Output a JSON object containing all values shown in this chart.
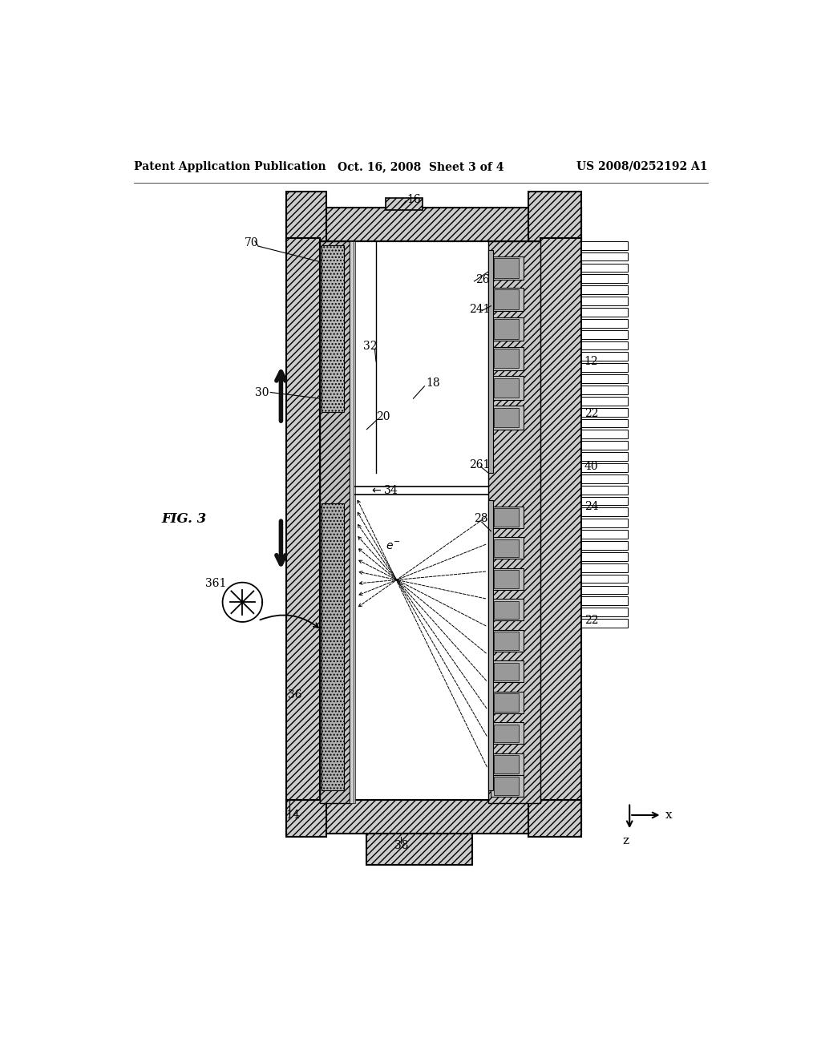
{
  "bg": "#ffffff",
  "header_left": "Patent Application Publication",
  "header_center": "Oct. 16, 2008  Sheet 3 of 4",
  "header_right": "US 2008/0252192 A1",
  "fig_label": "FIG. 3",
  "hatch_frame": "////",
  "hatch_dot": "....",
  "gray_frame": "#c8c8c8",
  "gray_dot": "#b0b0b0",
  "gray_dark": "#888888",
  "gray_mid": "#aaaaaa"
}
